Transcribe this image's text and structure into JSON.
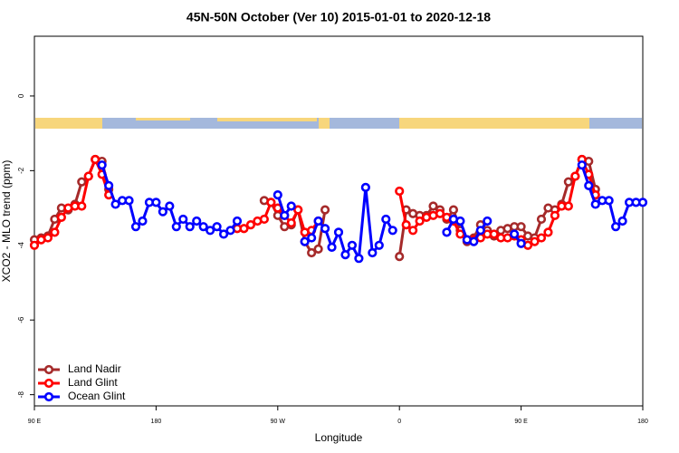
{
  "chart_data": {
    "type": "line",
    "title": "45N-50N October (Ver 10)   2015-01-01 to 2020-12-18",
    "xlabel": "Longitude",
    "ylabel": "XCO2 - MLO trend (ppm)",
    "xlim": [
      90,
      540
    ],
    "ylim": [
      -8.3,
      1.6
    ],
    "xticks": [
      {
        "value": 90,
        "label": "90 E"
      },
      180,
      {
        "value": 270,
        "label": "90 W"
      },
      {
        "value": 360,
        "label": "0"
      },
      {
        "value": 450,
        "label": "90 E"
      },
      {
        "value": 540,
        "label": "180"
      }
    ],
    "yticks": [
      -8,
      -6,
      -4,
      -2,
      0
    ],
    "legend": "lower left",
    "series": [
      {
        "name": "Land Nadir",
        "color": "#a52a2a",
        "x": [
          90,
          95,
          100,
          105,
          110,
          115,
          120,
          125,
          130,
          135,
          140,
          145,
          null,
          260,
          265,
          270,
          275,
          280,
          285,
          290,
          295,
          300,
          305,
          null,
          360,
          365,
          370,
          375,
          380,
          385,
          390,
          395,
          400,
          405,
          410,
          415,
          420,
          425,
          430,
          435,
          440,
          445,
          450,
          455,
          460,
          465,
          470,
          475,
          480,
          485,
          490,
          495,
          500,
          505
        ],
        "values": [
          -3.85,
          -3.8,
          -3.75,
          -3.3,
          -3.0,
          -3.05,
          -2.9,
          -2.3,
          -2.15,
          -1.7,
          -1.75,
          -2.5,
          null,
          -2.8,
          -2.85,
          -3.2,
          -3.5,
          -3.45,
          -3.05,
          -3.9,
          -4.2,
          -4.1,
          -3.05,
          null,
          -4.3,
          -3.05,
          -3.15,
          -3.2,
          -3.2,
          -2.95,
          -3.05,
          -3.3,
          -3.05,
          -3.6,
          -3.9,
          -3.8,
          -3.45,
          -3.6,
          -3.75,
          -3.6,
          -3.55,
          -3.5,
          -3.5,
          -3.75,
          -3.8,
          -3.3,
          -3.0,
          -3.05,
          -2.9,
          -2.3,
          -2.15,
          -1.7,
          -1.75,
          -2.5
        ]
      },
      {
        "name": "Land Glint",
        "color": "#ff0000",
        "x": [
          90,
          95,
          100,
          105,
          110,
          115,
          120,
          125,
          130,
          135,
          140,
          145,
          null,
          240,
          245,
          250,
          255,
          260,
          265,
          270,
          275,
          280,
          285,
          290,
          295,
          300,
          null,
          360,
          365,
          370,
          375,
          380,
          385,
          390,
          395,
          400,
          405,
          410,
          415,
          420,
          425,
          430,
          435,
          440,
          445,
          450,
          455,
          460,
          465,
          470,
          475,
          480,
          485,
          490,
          495,
          500,
          505
        ],
        "values": [
          -4.0,
          -3.85,
          -3.8,
          -3.65,
          -3.25,
          -3.0,
          -2.95,
          -2.95,
          -2.15,
          -1.7,
          -2.1,
          -2.65,
          null,
          -3.55,
          -3.55,
          -3.45,
          -3.35,
          -3.3,
          -2.85,
          -3.0,
          -3.2,
          -3.4,
          -3.05,
          -3.65,
          -3.6,
          -3.35,
          null,
          -2.55,
          -3.45,
          -3.6,
          -3.35,
          -3.25,
          -3.2,
          -3.15,
          -3.25,
          -3.35,
          -3.7,
          -3.85,
          -3.85,
          -3.8,
          -3.7,
          -3.7,
          -3.8,
          -3.8,
          -3.75,
          -3.85,
          -4.0,
          -3.9,
          -3.8,
          -3.65,
          -3.2,
          -2.95,
          -2.95,
          -2.15,
          -1.7,
          -2.1,
          -2.65
        ]
      },
      {
        "name": "Ocean Glint",
        "color": "#0000ff",
        "x": [
          140,
          145,
          150,
          155,
          160,
          165,
          170,
          175,
          180,
          185,
          190,
          195,
          200,
          205,
          210,
          215,
          220,
          225,
          230,
          235,
          240,
          null,
          270,
          275,
          280,
          null,
          290,
          295,
          300,
          305,
          310,
          315,
          320,
          325,
          330,
          335,
          340,
          345,
          350,
          355,
          null,
          395,
          400,
          405,
          410,
          415,
          420,
          425,
          null,
          445,
          450,
          null,
          495,
          500,
          505,
          510,
          515,
          520,
          525,
          530,
          535,
          540
        ],
        "values": [
          -1.85,
          -2.4,
          -2.9,
          -2.8,
          -2.8,
          -3.5,
          -3.35,
          -2.85,
          -2.85,
          -3.1,
          -2.95,
          -3.5,
          -3.3,
          -3.5,
          -3.35,
          -3.5,
          -3.6,
          -3.5,
          -3.7,
          -3.6,
          -3.35,
          null,
          -2.65,
          -3.2,
          -2.95,
          null,
          -3.9,
          -3.8,
          -3.35,
          -3.55,
          -4.05,
          -3.65,
          -4.25,
          -4.0,
          -4.35,
          -2.45,
          -4.2,
          -4.0,
          -3.3,
          -3.6,
          null,
          -3.65,
          -3.3,
          -3.35,
          -3.85,
          -3.9,
          -3.6,
          -3.35,
          null,
          -3.7,
          -3.95,
          null,
          -1.85,
          -2.4,
          -2.9,
          -2.8,
          -2.8,
          -3.5,
          -3.35,
          -2.85,
          -2.85,
          -2.85
        ]
      }
    ]
  }
}
